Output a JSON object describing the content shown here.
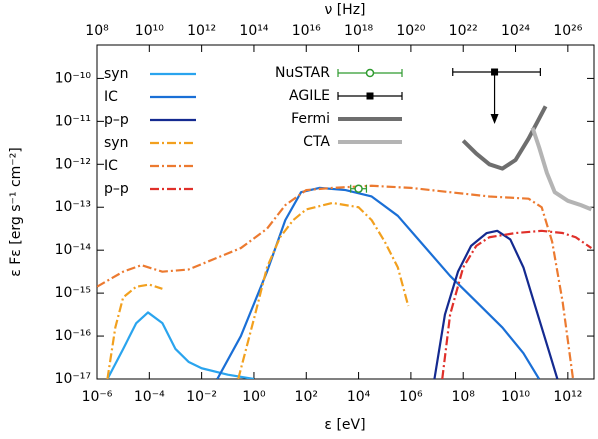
{
  "chart_data": {
    "type": "line",
    "xlabel": "ε [eV]",
    "x2label": "ν [Hz]",
    "ylabel": "ε Fε [erg s⁻¹ cm⁻²]",
    "xscale": "log",
    "yscale": "log",
    "xlim": [
      1e-06,
      10000000000000.0
    ],
    "x2lim": [
      100000000.0,
      1e+27
    ],
    "ylim": [
      1e-17,
      6e-10
    ],
    "xticks": [
      {
        "value": 1e-06,
        "label": "10⁻⁶"
      },
      {
        "value": 0.0001,
        "label": "10⁻⁴"
      },
      {
        "value": 0.01,
        "label": "10⁻²"
      },
      {
        "value": 1,
        "label": "10⁰"
      },
      {
        "value": 100,
        "label": "10²"
      },
      {
        "value": 10000.0,
        "label": "10⁴"
      },
      {
        "value": 1000000.0,
        "label": "10⁶"
      },
      {
        "value": 100000000.0,
        "label": "10⁸"
      },
      {
        "value": 10000000000.0,
        "label": "10¹⁰"
      },
      {
        "value": 1000000000000.0,
        "label": "10¹²"
      }
    ],
    "x2ticks": [
      {
        "value": 100000000.0,
        "label": "10⁸"
      },
      {
        "value": 10000000000.0,
        "label": "10¹⁰"
      },
      {
        "value": 1000000000000.0,
        "label": "10¹²"
      },
      {
        "value": 100000000000000.0,
        "label": "10¹⁴"
      },
      {
        "value": 1e+16,
        "label": "10¹⁶"
      },
      {
        "value": 1e+18,
        "label": "10¹⁸"
      },
      {
        "value": 1e+20,
        "label": "10²⁰"
      },
      {
        "value": 1e+22,
        "label": "10²²"
      },
      {
        "value": 1e+24,
        "label": "10²⁴"
      },
      {
        "value": 1e+26,
        "label": "10²⁶"
      }
    ],
    "yticks": [
      {
        "value": 1e-17,
        "label": "10⁻¹⁷"
      },
      {
        "value": 1e-16,
        "label": "10⁻¹⁶"
      },
      {
        "value": 1e-15,
        "label": "10⁻¹⁵"
      },
      {
        "value": 1e-14,
        "label": "10⁻¹⁴"
      },
      {
        "value": 1e-13,
        "label": "10⁻¹³"
      },
      {
        "value": 1e-12,
        "label": "10⁻¹²"
      },
      {
        "value": 1e-11,
        "label": "10⁻¹¹"
      },
      {
        "value": 1e-10,
        "label": "10⁻¹⁰"
      }
    ],
    "series": [
      {
        "name": "syn",
        "color": "#2aa4ee",
        "style": "solid",
        "x": [
          2.51e-06,
          1e-05,
          3.16e-05,
          8.91e-05,
          0.000316,
          0.001,
          0.00316,
          0.01,
          0.1,
          1
        ],
        "values": [
          1e-17,
          5.01e-17,
          2e-16,
          3.55e-16,
          2e-16,
          5.01e-17,
          2.51e-17,
          1.78e-17,
          1.26e-17,
          1e-17
        ]
      },
      {
        "name": "IC",
        "color": "#1a6fd6",
        "style": "solid",
        "x": [
          0.0398,
          0.316,
          3.16,
          15.8,
          63.1,
          316,
          3160,
          31600,
          316000.0,
          3160000.0,
          31600000.0,
          316000000.0,
          3160000000.0,
          20000000000.0,
          79400000000.0
        ],
        "values": [
          1e-17,
          1e-16,
          3.16e-15,
          5.01e-14,
          2.24e-13,
          2.82e-13,
          2.51e-13,
          1.78e-13,
          6.31e-14,
          1.26e-14,
          2.51e-15,
          6.31e-16,
          1.58e-16,
          3.98e-17,
          1e-17
        ]
      },
      {
        "name": "p–p",
        "color": "#142a90",
        "style": "solid",
        "x": [
          7940000.0,
          20000000.0,
          63100000.0,
          200000000.0,
          794000000.0,
          2000000000.0,
          6310000000.0,
          20000000000.0,
          63100000000.0,
          200000000000.0,
          398000000000.0
        ],
        "values": [
          1e-17,
          3.16e-16,
          3.16e-15,
          1.26e-14,
          2.51e-14,
          2.82e-14,
          1.78e-14,
          3.98e-15,
          3.98e-16,
          3.98e-17,
          1e-17
        ]
      },
      {
        "name": "syn",
        "color": "#f2a01e",
        "style": "dashdot",
        "x": [
          2.51e-06,
          5.01e-06,
          1e-05,
          3.16e-05,
          0.0001,
          0.000316,
          0.01,
          0.251,
          1,
          3.16,
          10,
          31.6,
          100,
          1000,
          10000.0,
          31600,
          100000.0,
          316000.0,
          794000.0
        ],
        "values": [
          1e-17,
          1.58e-16,
          7.94e-16,
          1.41e-15,
          1.58e-15,
          1.26e-15,
          null,
          1e-17,
          2.51e-16,
          3.98e-15,
          2e-14,
          5.01e-14,
          8.91e-14,
          1.26e-13,
          1e-13,
          5.01e-14,
          1.58e-14,
          3.98e-15,
          5.01e-16
        ]
      },
      {
        "name": "IC",
        "color": "#ec7a30",
        "style": "dashdot",
        "x": [
          1e-06,
          1e-05,
          5.01e-05,
          0.000316,
          0.00316,
          0.0316,
          0.316,
          3.16,
          15.8,
          100,
          1000,
          31600,
          1000000.0,
          31600000.0,
          1000000000.0,
          31600000000.0,
          100000000000.0,
          251000000000.0,
          631000000000.0,
          1580000000000.0
        ],
        "values": [
          1.41e-15,
          3.16e-15,
          4.47e-15,
          3.16e-15,
          3.55e-15,
          6.31e-15,
          1.12e-14,
          3.16e-14,
          1.12e-13,
          2.51e-13,
          2.82e-13,
          3.16e-13,
          2.82e-13,
          2.24e-13,
          1.78e-13,
          1.58e-13,
          1e-13,
          1.58e-14,
          6.31e-16,
          1e-17
        ]
      },
      {
        "name": "p–p",
        "color": "#e0302a",
        "style": "dashdot",
        "x": [
          15800000.0,
          31600000.0,
          100000000.0,
          316000000.0,
          1000000000.0,
          10000000000.0,
          100000000000.0,
          631000000000.0,
          2000000000000.0,
          7940000000000.0
        ],
        "values": [
          1e-17,
          3.16e-16,
          3.98e-15,
          1.26e-14,
          2e-14,
          2.51e-14,
          2.82e-14,
          2.51e-14,
          2e-14,
          1.12e-14
        ]
      },
      {
        "name": "NuSTAR",
        "color": "#2e9a2e",
        "style": "point",
        "marker": "circle",
        "x": [
          10000.0
        ],
        "values": [
          2.7e-13
        ],
        "xerr": [
          [
            5000.0,
            20000.0
          ]
        ]
      },
      {
        "name": "AGILE",
        "color": "#000000",
        "style": "point",
        "marker": "square",
        "upper_limit": true,
        "x": [
          1580000000.0
        ],
        "values": [
          1.41e-10
        ],
        "xerr": [
          [
            39800000.0,
            89100000000.0
          ]
        ]
      },
      {
        "name": "Fermi",
        "color": "#6e6e6e",
        "style": "thick",
        "x": [
          100000000.0,
          316000000.0,
          1000000000.0,
          3160000000.0,
          10000000000.0,
          31600000000.0,
          141000000000.0
        ],
        "values": [
          3.55e-12,
          1.78e-12,
          1e-12,
          7.94e-13,
          1.26e-12,
          3.98e-12,
          2.24e-11
        ]
      },
      {
        "name": "CTA",
        "color": "#b4b4b4",
        "style": "thick",
        "x": [
          44700000000.0,
          79400000000.0,
          158000000000.0,
          316000000000.0,
          1000000000000.0,
          3160000000000.0,
          7940000000000.0
        ],
        "values": [
          7.08e-12,
          2.51e-12,
          6.31e-13,
          2.24e-13,
          1.41e-13,
          1.12e-13,
          8.91e-14
        ]
      }
    ]
  }
}
